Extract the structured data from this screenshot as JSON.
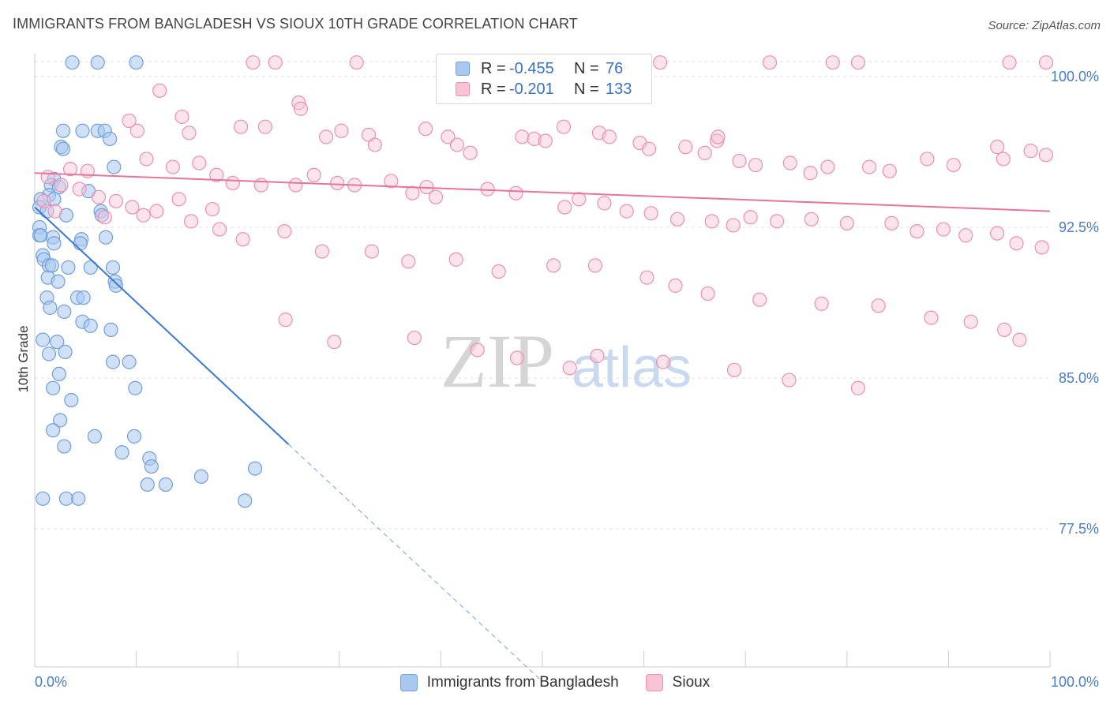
{
  "title": "IMMIGRANTS FROM BANGLADESH VS SIOUX 10TH GRADE CORRELATION CHART",
  "source": "Source: ZipAtlas.com",
  "watermark": {
    "zip": "ZIP",
    "atlas": "atlas"
  },
  "legend_top": {
    "r_label": "R =",
    "n_label": "N =",
    "rows": [
      {
        "r": "-0.455",
        "n": "76",
        "fill": "#a9c8f0",
        "stroke": "#6f9fe0"
      },
      {
        "r": "-0.201",
        "n": "133",
        "fill": "#f9c3d6",
        "stroke": "#ef8fb0"
      }
    ]
  },
  "legend_bottom": [
    {
      "label": "Immigrants from Bangladesh",
      "fill": "#a9c8f0",
      "stroke": "#6f9fe0"
    },
    {
      "label": "Sioux",
      "fill": "#f9c3d6",
      "stroke": "#ef8fb0"
    }
  ],
  "colors": {
    "blue": "#3a78d4",
    "pink": "#e8739c",
    "grid": "#e0e0e0",
    "axis_text": "#4a7cc7"
  },
  "chart_data": {
    "type": "scatter",
    "title": "IMMIGRANTS FROM BANGLADESH VS SIOUX 10TH GRADE CORRELATION CHART",
    "xlabel": "",
    "ylabel": "10th Grade",
    "xlim": [
      0,
      100
    ],
    "ylim": [
      70.0,
      101.5
    ],
    "x_tick_labels": [
      "0.0%",
      "100.0%"
    ],
    "y_ticks": [
      {
        "value": 100.0,
        "label": "100.0%"
      },
      {
        "value": 92.5,
        "label": "92.5%"
      },
      {
        "value": 85.0,
        "label": "85.0%"
      },
      {
        "value": 77.5,
        "label": "77.5%"
      }
    ],
    "grid": true,
    "legend_position": "top-center",
    "series": [
      {
        "name": "Immigrants from Bangladesh",
        "color": "#6f9fe0",
        "trend": {
          "x": [
            0.0,
            25.0
          ],
          "y": [
            93.5,
            81.7
          ],
          "dashed_to_x": 50.0
        },
        "points": [
          [
            3.7,
            100.7
          ],
          [
            6.2,
            100.7
          ],
          [
            10.0,
            100.7
          ],
          [
            2.8,
            97.3
          ],
          [
            4.7,
            97.3
          ],
          [
            6.2,
            97.3
          ],
          [
            6.9,
            97.3
          ],
          [
            7.4,
            96.9
          ],
          [
            2.6,
            96.5
          ],
          [
            2.8,
            96.4
          ],
          [
            7.8,
            95.5
          ],
          [
            1.9,
            94.9
          ],
          [
            1.6,
            94.6
          ],
          [
            2.4,
            94.5
          ],
          [
            5.3,
            94.3
          ],
          [
            1.4,
            94.1
          ],
          [
            1.9,
            93.9
          ],
          [
            0.6,
            93.9
          ],
          [
            0.4,
            93.5
          ],
          [
            1.2,
            93.3
          ],
          [
            3.1,
            93.1
          ],
          [
            6.5,
            93.3
          ],
          [
            6.6,
            93.1
          ],
          [
            0.3,
            92.5
          ],
          [
            0.2,
            92.1
          ],
          [
            0.6,
            92.1
          ],
          [
            1.8,
            92.0
          ],
          [
            1.9,
            91.7
          ],
          [
            4.6,
            91.9
          ],
          [
            4.5,
            91.7
          ],
          [
            7.0,
            92.0
          ],
          [
            0.8,
            91.1
          ],
          [
            0.9,
            90.9
          ],
          [
            1.4,
            90.6
          ],
          [
            1.7,
            90.6
          ],
          [
            3.3,
            90.5
          ],
          [
            5.5,
            90.5
          ],
          [
            7.7,
            90.5
          ],
          [
            1.3,
            90.0
          ],
          [
            2.3,
            89.8
          ],
          [
            7.9,
            89.8
          ],
          [
            8.0,
            89.6
          ],
          [
            1.2,
            89.0
          ],
          [
            4.2,
            89.0
          ],
          [
            4.8,
            89.0
          ],
          [
            1.5,
            88.5
          ],
          [
            2.9,
            88.3
          ],
          [
            4.7,
            87.8
          ],
          [
            5.5,
            87.6
          ],
          [
            7.5,
            87.4
          ],
          [
            0.8,
            86.9
          ],
          [
            2.2,
            86.8
          ],
          [
            3.0,
            86.3
          ],
          [
            1.4,
            86.2
          ],
          [
            7.7,
            85.8
          ],
          [
            9.3,
            85.8
          ],
          [
            2.4,
            85.2
          ],
          [
            1.8,
            84.5
          ],
          [
            9.9,
            84.5
          ],
          [
            3.6,
            83.9
          ],
          [
            2.5,
            82.9
          ],
          [
            1.8,
            82.4
          ],
          [
            5.9,
            82.1
          ],
          [
            9.8,
            82.1
          ],
          [
            2.9,
            81.6
          ],
          [
            8.6,
            81.3
          ],
          [
            11.3,
            81.0
          ],
          [
            11.5,
            80.6
          ],
          [
            16.4,
            80.1
          ],
          [
            21.7,
            80.5
          ],
          [
            11.1,
            79.7
          ],
          [
            12.9,
            79.7
          ],
          [
            3.1,
            79.0
          ],
          [
            4.3,
            79.0
          ],
          [
            0.8,
            79.0
          ],
          [
            20.7,
            78.9
          ]
        ]
      },
      {
        "name": "Sioux",
        "color": "#ef8fb0",
        "trend": {
          "x": [
            0.0,
            100.0
          ],
          "y": [
            95.2,
            93.3
          ]
        },
        "points": [
          [
            21.5,
            100.7
          ],
          [
            23.7,
            100.7
          ],
          [
            31.7,
            100.7
          ],
          [
            46.1,
            100.7
          ],
          [
            57.0,
            100.7
          ],
          [
            59.9,
            100.7
          ],
          [
            61.6,
            100.7
          ],
          [
            72.4,
            100.7
          ],
          [
            78.6,
            100.7
          ],
          [
            81.1,
            100.7
          ],
          [
            96.0,
            100.7
          ],
          [
            103.8,
            100.7
          ],
          [
            12.3,
            99.3
          ],
          [
            26.0,
            98.7
          ],
          [
            26.2,
            98.4
          ],
          [
            14.5,
            98.0
          ],
          [
            9.3,
            97.8
          ],
          [
            10.1,
            97.3
          ],
          [
            15.2,
            97.2
          ],
          [
            20.3,
            97.5
          ],
          [
            22.7,
            97.5
          ],
          [
            28.7,
            97.0
          ],
          [
            30.2,
            97.3
          ],
          [
            32.9,
            97.1
          ],
          [
            33.5,
            96.6
          ],
          [
            38.5,
            97.4
          ],
          [
            40.7,
            97.0
          ],
          [
            41.6,
            96.6
          ],
          [
            42.9,
            96.2
          ],
          [
            48.0,
            97.0
          ],
          [
            49.2,
            96.9
          ],
          [
            50.3,
            96.8
          ],
          [
            52.1,
            97.5
          ],
          [
            55.6,
            97.2
          ],
          [
            56.6,
            97.0
          ],
          [
            59.6,
            96.7
          ],
          [
            60.5,
            96.4
          ],
          [
            64.1,
            96.5
          ],
          [
            66.0,
            96.2
          ],
          [
            67.2,
            96.8
          ],
          [
            67.3,
            97.0
          ],
          [
            69.4,
            95.8
          ],
          [
            71.0,
            95.6
          ],
          [
            74.4,
            95.7
          ],
          [
            76.4,
            95.2
          ],
          [
            78.1,
            95.5
          ],
          [
            82.2,
            95.5
          ],
          [
            84.2,
            95.3
          ],
          [
            87.9,
            95.9
          ],
          [
            90.5,
            95.6
          ],
          [
            94.8,
            96.5
          ],
          [
            95.4,
            95.9
          ],
          [
            98.1,
            96.3
          ],
          [
            99.6,
            96.1
          ],
          [
            11.0,
            95.9
          ],
          [
            13.6,
            95.5
          ],
          [
            16.2,
            95.7
          ],
          [
            17.9,
            95.1
          ],
          [
            19.5,
            94.7
          ],
          [
            22.3,
            94.6
          ],
          [
            25.7,
            94.6
          ],
          [
            27.5,
            95.1
          ],
          [
            29.8,
            94.7
          ],
          [
            31.5,
            94.6
          ],
          [
            35.1,
            94.8
          ],
          [
            37.2,
            94.2
          ],
          [
            38.6,
            94.5
          ],
          [
            39.5,
            94.0
          ],
          [
            44.6,
            94.4
          ],
          [
            47.4,
            94.2
          ],
          [
            52.2,
            93.5
          ],
          [
            53.6,
            93.9
          ],
          [
            56.1,
            93.7
          ],
          [
            58.3,
            93.3
          ],
          [
            60.7,
            93.2
          ],
          [
            63.3,
            92.9
          ],
          [
            66.7,
            92.8
          ],
          [
            68.8,
            92.6
          ],
          [
            70.5,
            93.0
          ],
          [
            73.1,
            92.8
          ],
          [
            76.5,
            92.9
          ],
          [
            80.0,
            92.7
          ],
          [
            84.4,
            92.7
          ],
          [
            86.9,
            92.3
          ],
          [
            89.5,
            92.4
          ],
          [
            91.7,
            92.1
          ],
          [
            94.8,
            92.2
          ],
          [
            96.7,
            91.7
          ],
          [
            99.2,
            91.5
          ],
          [
            8.0,
            93.8
          ],
          [
            9.6,
            93.5
          ],
          [
            12.0,
            93.3
          ],
          [
            15.4,
            92.8
          ],
          [
            18.2,
            92.4
          ],
          [
            20.5,
            91.9
          ],
          [
            24.6,
            92.3
          ],
          [
            28.3,
            91.3
          ],
          [
            33.2,
            91.3
          ],
          [
            36.8,
            90.8
          ],
          [
            41.5,
            90.9
          ],
          [
            45.7,
            90.3
          ],
          [
            51.1,
            90.6
          ],
          [
            55.2,
            90.6
          ],
          [
            60.3,
            90.0
          ],
          [
            63.1,
            89.6
          ],
          [
            66.3,
            89.2
          ],
          [
            71.4,
            88.9
          ],
          [
            77.5,
            88.7
          ],
          [
            83.1,
            88.6
          ],
          [
            88.3,
            88.0
          ],
          [
            92.2,
            87.8
          ],
          [
            95.5,
            87.4
          ],
          [
            97.0,
            86.9
          ],
          [
            6.9,
            93.0
          ],
          [
            10.7,
            93.1
          ],
          [
            2.6,
            94.6
          ],
          [
            3.5,
            95.4
          ],
          [
            1.3,
            95.0
          ],
          [
            5.2,
            95.3
          ],
          [
            4.4,
            94.4
          ],
          [
            0.9,
            93.8
          ],
          [
            2.0,
            93.3
          ],
          [
            6.3,
            94.0
          ],
          [
            14.2,
            93.9
          ],
          [
            17.5,
            93.4
          ],
          [
            24.7,
            87.9
          ],
          [
            29.5,
            86.8
          ],
          [
            37.4,
            87.0
          ],
          [
            43.6,
            86.4
          ],
          [
            47.5,
            86.0
          ],
          [
            52.7,
            85.5
          ],
          [
            55.4,
            86.1
          ],
          [
            61.9,
            85.8
          ],
          [
            68.9,
            85.4
          ],
          [
            74.3,
            84.9
          ],
          [
            81.1,
            84.5
          ]
        ]
      }
    ]
  }
}
